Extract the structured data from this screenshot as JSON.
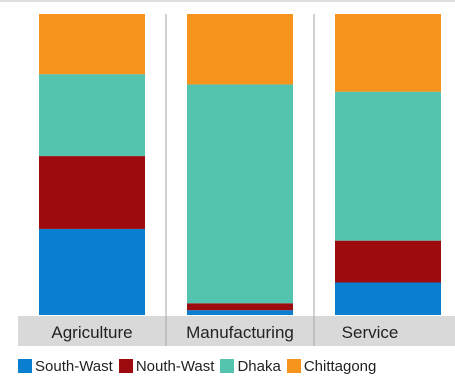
{
  "chart_data": {
    "type": "bar",
    "stacked": true,
    "normalized": true,
    "categories": [
      "Agriculture",
      "Manufacturing",
      "Service"
    ],
    "series": [
      {
        "name": "South-Wast",
        "color": "#0a7fd0",
        "values": [
          0.286,
          0.016,
          0.108
        ]
      },
      {
        "name": "Nouth-Wast",
        "color": "#9e0b0f",
        "values": [
          0.242,
          0.023,
          0.139
        ]
      },
      {
        "name": "Dhaka",
        "color": "#55c4ae",
        "values": [
          0.272,
          0.727,
          0.495
        ]
      },
      {
        "name": "Chittagong",
        "color": "#f7941d",
        "values": [
          0.2,
          0.234,
          0.258
        ]
      }
    ],
    "ylim": [
      0,
      1
    ],
    "grid": false,
    "legend_position": "bottom",
    "title": "",
    "xlabel": "",
    "ylabel": ""
  }
}
